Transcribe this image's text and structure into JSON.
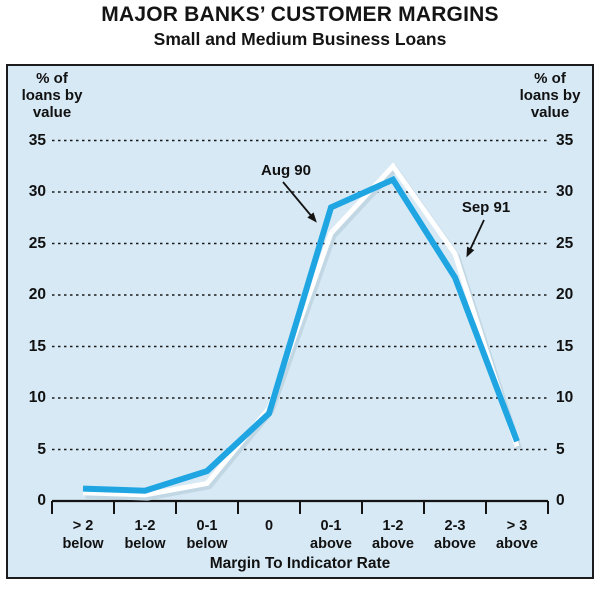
{
  "header": {
    "title": "MAJOR BANKS’ CUSTOMER MARGINS",
    "subtitle": "Small and Medium Business Loans"
  },
  "labels": {
    "y_axis_left": "% of\nloans by\nvalue",
    "y_axis_right": "% of\nloans by\nvalue",
    "x_axis_title": "Margin To Indicator Rate"
  },
  "colors": {
    "plot_background": "#d7e9f5",
    "plot_border": "#1c1c1e",
    "gridline": "#1a1a1a",
    "axis": "#141414",
    "aug_90_line": "#1ea5e2",
    "sep_91_line": "#ffffff",
    "sep_91_shadow": "#c2d7e4",
    "text": "#141414"
  },
  "chart_data": {
    "type": "line",
    "title": "MAJOR BANKS’ CUSTOMER MARGINS",
    "subtitle": "Small and Medium Business Loans",
    "xlabel": "Margin To Indicator Rate",
    "ylabel": "% of loans by value",
    "categories": [
      "> 2 below",
      "1-2 below",
      "0-1 below",
      "0",
      "0-1 above",
      "1-2 above",
      "2-3 above",
      "> 3 above"
    ],
    "yticks": [
      0,
      5,
      10,
      15,
      20,
      25,
      30,
      35
    ],
    "ylim": [
      0,
      35
    ],
    "grid": "horizontal-dashed",
    "legend_position": "inline-annotations-with-arrows",
    "series": [
      {
        "name": "Aug 90",
        "color": "#1ea5e2",
        "values": [
          1.2,
          1.0,
          2.9,
          8.5,
          28.5,
          31.2,
          21.7,
          5.8
        ]
      },
      {
        "name": "Sep 91",
        "color": "#ffffff",
        "values": [
          0.8,
          0.6,
          1.7,
          9.0,
          26.0,
          32.5,
          24.0,
          5.3
        ]
      }
    ]
  }
}
